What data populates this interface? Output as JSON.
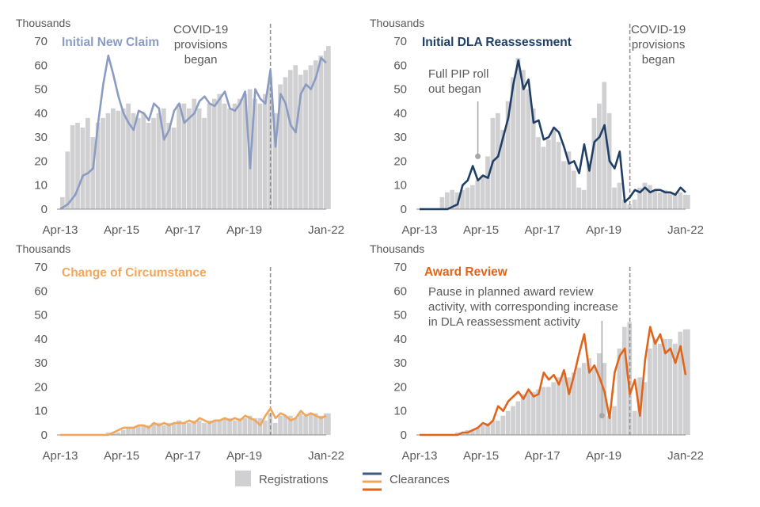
{
  "legend": {
    "registrations_label": "Registrations",
    "clearances_label": "Clearances",
    "registrations_color": "#d0d0d2",
    "clearance_colors": [
      "#3d5a80",
      "#f2a65a",
      "#e0651c"
    ]
  },
  "chart_data": [
    {
      "type": "bar+line",
      "title": "Initial New Claim",
      "title_color": "#8a9cc2",
      "line_color": "#8a9cc2",
      "ylabel": "Thousands",
      "ylim": [
        0,
        70
      ],
      "yticks": [
        0,
        10,
        20,
        30,
        40,
        50,
        60,
        70
      ],
      "xlim": [
        "2013-04",
        "2022-01"
      ],
      "xticks": [
        "Apr-13",
        "Apr-15",
        "Apr-17",
        "Apr-19",
        "Jan-22"
      ],
      "annotations": [
        {
          "type": "vline",
          "at": "2020-03",
          "text": [
            "COVID-19",
            "provisions",
            "began"
          ]
        }
      ],
      "registrations": {
        "name": "Registrations",
        "x": [
          "2013-04",
          "2013-06",
          "2013-08",
          "2013-10",
          "2013-12",
          "2014-02",
          "2014-04",
          "2014-06",
          "2014-08",
          "2014-10",
          "2014-12",
          "2015-02",
          "2015-04",
          "2015-06",
          "2015-08",
          "2015-10",
          "2015-12",
          "2016-02",
          "2016-04",
          "2016-06",
          "2016-08",
          "2016-10",
          "2016-12",
          "2017-02",
          "2017-04",
          "2017-06",
          "2017-08",
          "2017-10",
          "2017-12",
          "2018-02",
          "2018-04",
          "2018-06",
          "2018-08",
          "2018-10",
          "2018-12",
          "2019-02",
          "2019-04",
          "2019-06",
          "2019-08",
          "2019-10",
          "2019-12",
          "2020-02",
          "2020-04",
          "2020-06",
          "2020-08",
          "2020-10",
          "2020-12",
          "2021-02",
          "2021-04",
          "2021-06",
          "2021-08",
          "2021-10",
          "2021-12",
          "2022-01"
        ],
        "values": [
          5,
          24,
          35,
          36,
          34,
          38,
          30,
          36,
          38,
          40,
          42,
          41,
          42,
          44,
          40,
          38,
          40,
          36,
          38,
          40,
          42,
          36,
          34,
          44,
          44,
          42,
          46,
          42,
          38,
          44,
          46,
          48,
          44,
          42,
          44,
          46,
          48,
          50,
          46,
          44,
          48,
          55,
          40,
          52,
          55,
          58,
          60,
          56,
          58,
          60,
          62,
          64,
          66,
          68
        ]
      },
      "clearances": {
        "name": "Clearances",
        "x": [
          "2013-04",
          "2013-07",
          "2013-10",
          "2014-01",
          "2014-03",
          "2014-05",
          "2014-07",
          "2014-09",
          "2014-11",
          "2015-01",
          "2015-03",
          "2015-05",
          "2015-07",
          "2015-09",
          "2015-11",
          "2016-01",
          "2016-03",
          "2016-05",
          "2016-07",
          "2016-09",
          "2016-11",
          "2017-01",
          "2017-03",
          "2017-05",
          "2017-07",
          "2017-09",
          "2017-11",
          "2018-01",
          "2018-03",
          "2018-05",
          "2018-07",
          "2018-09",
          "2018-11",
          "2019-01",
          "2019-03",
          "2019-05",
          "2019-07",
          "2019-09",
          "2019-11",
          "2020-01",
          "2020-03",
          "2020-05",
          "2020-07",
          "2020-09",
          "2020-11",
          "2021-01",
          "2021-03",
          "2021-05",
          "2021-07",
          "2021-09",
          "2021-11",
          "2022-01"
        ],
        "values": [
          0,
          2,
          6,
          14,
          15,
          17,
          36,
          52,
          64,
          56,
          47,
          40,
          36,
          33,
          41,
          40,
          37,
          44,
          42,
          29,
          33,
          41,
          44,
          36,
          38,
          40,
          45,
          47,
          44,
          43,
          46,
          49,
          42,
          41,
          44,
          49,
          17,
          50,
          46,
          44,
          58,
          26,
          48,
          44,
          35,
          32,
          48,
          52,
          50,
          55,
          63,
          61
        ]
      }
    },
    {
      "type": "bar+line",
      "title": "Initial DLA Reassessment",
      "title_color": "#1f3f66",
      "line_color": "#1f3f66",
      "ylabel": "Thousands",
      "ylim": [
        0,
        70
      ],
      "yticks": [
        0,
        10,
        20,
        30,
        40,
        50,
        60,
        70
      ],
      "xlim": [
        "2013-04",
        "2022-01"
      ],
      "xticks": [
        "Apr-13",
        "Apr-15",
        "Apr-17",
        "Apr-19",
        "Jan-22"
      ],
      "annotations": [
        {
          "type": "vline",
          "at": "2020-03",
          "text": [
            "COVID-19",
            "provisions",
            "began"
          ]
        },
        {
          "type": "callout",
          "at": "2015-03",
          "value": 22,
          "text": [
            "Full PIP roll",
            "out began"
          ]
        }
      ],
      "registrations": {
        "name": "Registrations",
        "x": [
          "2013-04",
          "2013-06",
          "2013-08",
          "2013-10",
          "2013-12",
          "2014-02",
          "2014-04",
          "2014-06",
          "2014-08",
          "2014-10",
          "2014-12",
          "2015-02",
          "2015-04",
          "2015-06",
          "2015-08",
          "2015-10",
          "2015-12",
          "2016-02",
          "2016-04",
          "2016-06",
          "2016-08",
          "2016-10",
          "2016-12",
          "2017-02",
          "2017-04",
          "2017-06",
          "2017-08",
          "2017-10",
          "2017-12",
          "2018-02",
          "2018-04",
          "2018-06",
          "2018-08",
          "2018-10",
          "2018-12",
          "2019-02",
          "2019-04",
          "2019-06",
          "2019-08",
          "2019-10",
          "2019-12",
          "2020-02",
          "2020-04",
          "2020-06",
          "2020-08",
          "2020-10",
          "2020-12",
          "2021-02",
          "2021-04",
          "2021-06",
          "2021-08",
          "2021-10",
          "2021-12",
          "2022-01"
        ],
        "values": [
          0,
          0,
          0,
          0,
          5,
          7,
          8,
          7,
          8,
          9,
          10,
          12,
          14,
          22,
          38,
          40,
          33,
          45,
          55,
          63,
          58,
          50,
          42,
          30,
          26,
          29,
          33,
          28,
          20,
          24,
          16,
          9,
          8,
          20,
          38,
          44,
          53,
          40,
          9,
          11,
          4,
          2,
          4,
          9,
          11,
          10,
          8,
          7,
          8,
          7,
          6,
          7,
          6,
          6
        ]
      },
      "clearances": {
        "name": "Clearances",
        "x": [
          "2013-04",
          "2013-07",
          "2013-10",
          "2014-01",
          "2014-03",
          "2014-05",
          "2014-07",
          "2014-09",
          "2014-11",
          "2015-01",
          "2015-03",
          "2015-05",
          "2015-07",
          "2015-09",
          "2015-11",
          "2016-01",
          "2016-03",
          "2016-05",
          "2016-07",
          "2016-09",
          "2016-11",
          "2017-01",
          "2017-03",
          "2017-05",
          "2017-07",
          "2017-09",
          "2017-11",
          "2018-01",
          "2018-03",
          "2018-05",
          "2018-07",
          "2018-09",
          "2018-11",
          "2019-01",
          "2019-03",
          "2019-05",
          "2019-07",
          "2019-09",
          "2019-11",
          "2020-01",
          "2020-03",
          "2020-05",
          "2020-07",
          "2020-09",
          "2020-11",
          "2021-01",
          "2021-03",
          "2021-05",
          "2021-07",
          "2021-09",
          "2021-11",
          "2022-01"
        ],
        "values": [
          0,
          0,
          0,
          0,
          0,
          1,
          2,
          10,
          12,
          18,
          12,
          14,
          13,
          20,
          22,
          30,
          38,
          52,
          62,
          50,
          54,
          36,
          37,
          29,
          30,
          34,
          32,
          26,
          19,
          20,
          15,
          27,
          16,
          28,
          30,
          35,
          20,
          17,
          24,
          3,
          5,
          8,
          7,
          9,
          7,
          8,
          8,
          7,
          7,
          6,
          9,
          7
        ]
      }
    },
    {
      "type": "bar+line",
      "title": "Change of Circumstance",
      "title_color": "#f2a65a",
      "line_color": "#f2a65a",
      "ylabel": "Thousands",
      "ylim": [
        0,
        70
      ],
      "yticks": [
        0,
        10,
        20,
        30,
        40,
        50,
        60,
        70
      ],
      "xlim": [
        "2013-04",
        "2022-01"
      ],
      "xticks": [
        "Apr-13",
        "Apr-15",
        "Apr-17",
        "Apr-19",
        "Jan-22"
      ],
      "annotations": [
        {
          "type": "vline",
          "at": "2020-03",
          "text": []
        }
      ],
      "registrations": {
        "name": "Registrations",
        "x": [
          "2013-04",
          "2013-06",
          "2013-08",
          "2013-10",
          "2013-12",
          "2014-02",
          "2014-04",
          "2014-06",
          "2014-08",
          "2014-10",
          "2014-12",
          "2015-02",
          "2015-04",
          "2015-06",
          "2015-08",
          "2015-10",
          "2015-12",
          "2016-02",
          "2016-04",
          "2016-06",
          "2016-08",
          "2016-10",
          "2016-12",
          "2017-02",
          "2017-04",
          "2017-06",
          "2017-08",
          "2017-10",
          "2017-12",
          "2018-02",
          "2018-04",
          "2018-06",
          "2018-08",
          "2018-10",
          "2018-12",
          "2019-02",
          "2019-04",
          "2019-06",
          "2019-08",
          "2019-10",
          "2019-12",
          "2020-02",
          "2020-04",
          "2020-06",
          "2020-08",
          "2020-10",
          "2020-12",
          "2021-02",
          "2021-04",
          "2021-06",
          "2021-08",
          "2021-10",
          "2021-12",
          "2022-01"
        ],
        "values": [
          0,
          0,
          0,
          0,
          0,
          0,
          0,
          0,
          0,
          1,
          1,
          1,
          2,
          3,
          3,
          4,
          4,
          4,
          5,
          5,
          4,
          5,
          5,
          6,
          5,
          5,
          6,
          6,
          5,
          6,
          6,
          6,
          7,
          7,
          6,
          7,
          7,
          8,
          7,
          7,
          6,
          9,
          5,
          8,
          8,
          8,
          7,
          9,
          8,
          9,
          9,
          8,
          9,
          9
        ]
      },
      "clearances": {
        "name": "Clearances",
        "x": [
          "2013-04",
          "2013-07",
          "2013-10",
          "2014-01",
          "2014-03",
          "2014-05",
          "2014-07",
          "2014-09",
          "2014-11",
          "2015-01",
          "2015-03",
          "2015-05",
          "2015-07",
          "2015-09",
          "2015-11",
          "2016-01",
          "2016-03",
          "2016-05",
          "2016-07",
          "2016-09",
          "2016-11",
          "2017-01",
          "2017-03",
          "2017-05",
          "2017-07",
          "2017-09",
          "2017-11",
          "2018-01",
          "2018-03",
          "2018-05",
          "2018-07",
          "2018-09",
          "2018-11",
          "2019-01",
          "2019-03",
          "2019-05",
          "2019-07",
          "2019-09",
          "2019-11",
          "2020-01",
          "2020-03",
          "2020-05",
          "2020-07",
          "2020-09",
          "2020-11",
          "2021-01",
          "2021-03",
          "2021-05",
          "2021-07",
          "2021-09",
          "2021-11",
          "2022-01"
        ],
        "values": [
          0,
          0,
          0,
          0,
          0,
          0,
          0,
          0,
          0,
          1,
          2,
          3,
          3,
          3,
          4,
          4,
          3,
          5,
          4,
          5,
          4,
          5,
          5,
          5,
          6,
          5,
          7,
          6,
          5,
          6,
          6,
          7,
          6,
          7,
          6,
          8,
          7,
          6,
          4,
          8,
          11,
          7,
          9,
          8,
          6,
          7,
          10,
          8,
          9,
          8,
          7,
          8
        ]
      }
    },
    {
      "type": "bar+line",
      "title": "Award Review",
      "title_color": "#e0651c",
      "line_color": "#e0651c",
      "ylabel": "Thousands",
      "ylim": [
        0,
        70
      ],
      "yticks": [
        0,
        10,
        20,
        30,
        40,
        50,
        60,
        70
      ],
      "xlim": [
        "2013-04",
        "2022-01"
      ],
      "xticks": [
        "Apr-13",
        "Apr-15",
        "Apr-17",
        "Apr-19",
        "Jan-22"
      ],
      "annotations": [
        {
          "type": "vline",
          "at": "2020-03",
          "text": []
        },
        {
          "type": "callout",
          "at": "2019-04",
          "value": 8,
          "text": [
            "Pause in planned award review",
            "activity, with corresponding increase",
            "in DLA reassessment activity"
          ]
        }
      ],
      "registrations": {
        "name": "Registrations",
        "x": [
          "2013-04",
          "2013-06",
          "2013-08",
          "2013-10",
          "2013-12",
          "2014-02",
          "2014-04",
          "2014-06",
          "2014-08",
          "2014-10",
          "2014-12",
          "2015-02",
          "2015-04",
          "2015-06",
          "2015-08",
          "2015-10",
          "2015-12",
          "2016-02",
          "2016-04",
          "2016-06",
          "2016-08",
          "2016-10",
          "2016-12",
          "2017-02",
          "2017-04",
          "2017-06",
          "2017-08",
          "2017-10",
          "2017-12",
          "2018-02",
          "2018-04",
          "2018-06",
          "2018-08",
          "2018-10",
          "2018-12",
          "2019-02",
          "2019-04",
          "2019-06",
          "2019-08",
          "2019-10",
          "2019-12",
          "2020-02",
          "2020-04",
          "2020-06",
          "2020-08",
          "2020-10",
          "2020-12",
          "2021-02",
          "2021-04",
          "2021-06",
          "2021-08",
          "2021-10",
          "2021-12",
          "2022-01"
        ],
        "values": [
          0,
          0,
          0,
          0,
          0,
          0,
          0,
          1,
          1,
          2,
          2,
          3,
          4,
          5,
          6,
          6,
          8,
          10,
          12,
          14,
          17,
          18,
          18,
          19,
          20,
          20,
          22,
          24,
          26,
          24,
          26,
          28,
          30,
          32,
          28,
          34,
          30,
          8,
          12,
          36,
          45,
          47,
          10,
          24,
          22,
          36,
          40,
          38,
          40,
          40,
          38,
          43,
          44,
          44
        ]
      },
      "clearances": {
        "name": "Clearances",
        "x": [
          "2013-04",
          "2013-07",
          "2013-10",
          "2014-01",
          "2014-03",
          "2014-05",
          "2014-07",
          "2014-09",
          "2014-11",
          "2015-01",
          "2015-03",
          "2015-05",
          "2015-07",
          "2015-09",
          "2015-11",
          "2016-01",
          "2016-03",
          "2016-05",
          "2016-07",
          "2016-09",
          "2016-11",
          "2017-01",
          "2017-03",
          "2017-05",
          "2017-07",
          "2017-09",
          "2017-11",
          "2018-01",
          "2018-03",
          "2018-05",
          "2018-07",
          "2018-09",
          "2018-11",
          "2019-01",
          "2019-03",
          "2019-05",
          "2019-07",
          "2019-09",
          "2019-11",
          "2020-01",
          "2020-03",
          "2020-05",
          "2020-07",
          "2020-09",
          "2020-11",
          "2021-01",
          "2021-03",
          "2021-05",
          "2021-07",
          "2021-09",
          "2021-11",
          "2022-01"
        ],
        "values": [
          0,
          0,
          0,
          0,
          0,
          0,
          0,
          1,
          1,
          2,
          3,
          5,
          4,
          6,
          12,
          10,
          14,
          16,
          18,
          15,
          19,
          16,
          17,
          26,
          23,
          25,
          21,
          27,
          17,
          25,
          34,
          42,
          26,
          29,
          24,
          18,
          7,
          26,
          33,
          36,
          17,
          23,
          8,
          31,
          45,
          38,
          42,
          34,
          36,
          30,
          37,
          25
        ]
      }
    }
  ]
}
